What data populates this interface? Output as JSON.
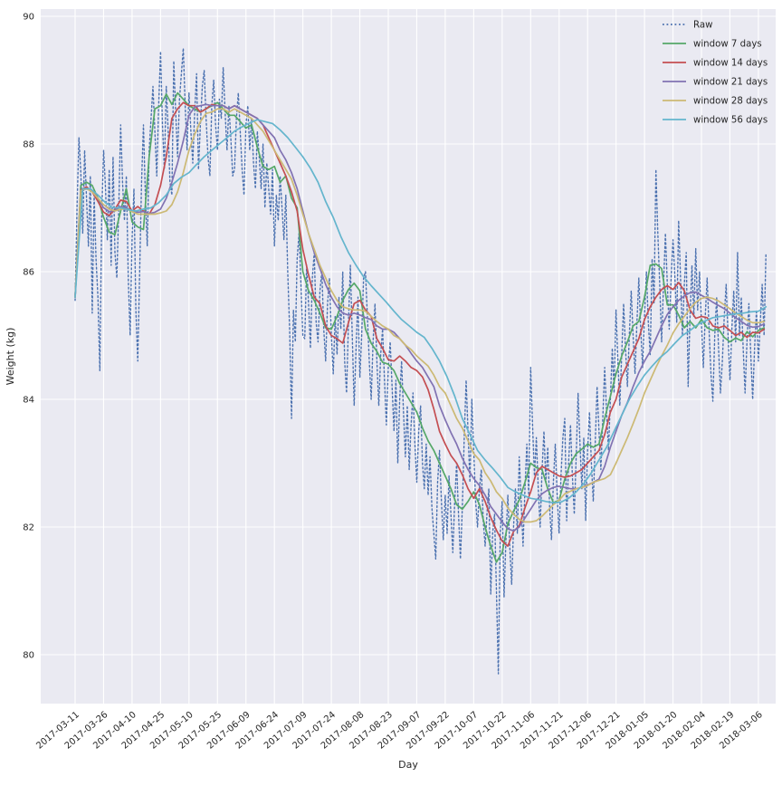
{
  "figure": {
    "bg_color": "#ffffff",
    "axes_bg_color": "#eaeaf2",
    "grid_color": "#ffffff",
    "text_color": "#262626"
  },
  "chart_data": {
    "type": "line",
    "xlabel": "Day",
    "ylabel": "Weight (kg)",
    "grid": true,
    "ylim": [
      79.2,
      90.1
    ],
    "yticks": [
      80,
      82,
      84,
      86,
      88,
      90
    ],
    "x_tick_days": [
      0,
      15,
      30,
      45,
      60,
      75,
      90,
      105,
      120,
      135,
      150,
      165,
      180,
      195,
      210,
      225,
      240,
      255,
      270,
      285,
      300,
      315,
      330,
      345,
      360
    ],
    "x_tick_labels": [
      "2017-03-11",
      "2017-03-26",
      "2017-04-10",
      "2017-04-25",
      "2017-05-10",
      "2017-05-25",
      "2017-06-09",
      "2017-06-24",
      "2017-07-09",
      "2017-07-24",
      "2017-08-08",
      "2017-08-23",
      "2017-09-07",
      "2017-09-22",
      "2017-10-07",
      "2017-10-22",
      "2017-11-06",
      "2017-11-21",
      "2017-12-06",
      "2017-12-21",
      "2018-01-05",
      "2018-01-20",
      "2018-02-04",
      "2018-02-19",
      "2018-03-06"
    ],
    "legend": {
      "position": "upper right",
      "entries": [
        {
          "label": "Raw",
          "color": "#4c72b0",
          "style": "dotted"
        },
        {
          "label": "window 7 days",
          "color": "#55a868",
          "style": "solid"
        },
        {
          "label": "window 14 days",
          "color": "#c44e52",
          "style": "solid"
        },
        {
          "label": "window 21 days",
          "color": "#8172b2",
          "style": "solid"
        },
        {
          "label": "window 28 days",
          "color": "#ccb974",
          "style": "solid"
        },
        {
          "label": "window 56 days",
          "color": "#64b5cd",
          "style": "solid"
        }
      ]
    },
    "series": [
      {
        "name": "Raw",
        "color": "#4c72b0",
        "style": "dotted",
        "width": 1.4,
        "x0": 0,
        "dx": 1,
        "y": [
          85.55,
          87.0,
          88.1,
          87.55,
          86.6,
          87.9,
          87.15,
          86.4,
          87.5,
          85.35,
          87.2,
          86.2,
          85.6,
          84.45,
          86.9,
          87.9,
          87.3,
          86.5,
          87.6,
          86.1,
          87.8,
          86.3,
          85.9,
          87.0,
          88.3,
          87.4,
          86.8,
          87.5,
          85.9,
          85.0,
          86.5,
          87.3,
          85.4,
          84.6,
          86.0,
          87.4,
          88.3,
          87.2,
          86.4,
          87.9,
          88.4,
          88.9,
          88.2,
          87.5,
          88.6,
          89.45,
          88.3,
          87.6,
          88.9,
          88.2,
          87.4,
          87.2,
          89.3,
          88.5,
          87.8,
          88.7,
          89.1,
          89.5,
          88.6,
          87.9,
          88.8,
          88.2,
          87.7,
          88.5,
          89.1,
          87.6,
          88.3,
          88.9,
          89.15,
          88.4,
          87.8,
          87.5,
          88.6,
          89.0,
          88.3,
          87.9,
          88.7,
          88.4,
          89.2,
          88.5,
          87.9,
          88.6,
          88.1,
          87.5,
          87.6,
          88.4,
          88.8,
          88.2,
          87.6,
          87.2,
          88.3,
          88.6,
          87.9,
          88.4,
          87.7,
          87.3,
          88.2,
          87.8,
          87.3,
          88.0,
          87.0,
          87.7,
          87.3,
          86.9,
          87.6,
          86.4,
          87.2,
          86.8,
          87.5,
          87.0,
          86.5,
          87.2,
          86.0,
          85.1,
          83.7,
          85.4,
          84.9,
          86.2,
          86.6,
          85.8,
          85.0,
          84.95,
          86.1,
          85.5,
          84.8,
          85.9,
          86.3,
          85.2,
          84.9,
          85.7,
          86.0,
          85.1,
          84.6,
          85.5,
          85.9,
          85.0,
          84.4,
          85.3,
          84.7,
          85.6,
          85.1,
          86.0,
          84.6,
          84.1,
          85.2,
          86.1,
          85.0,
          83.9,
          84.8,
          85.6,
          84.34,
          85.0,
          85.9,
          86.0,
          85.3,
          84.6,
          84.0,
          84.9,
          85.5,
          84.6,
          83.9,
          84.7,
          85.1,
          84.3,
          83.6,
          84.5,
          84.9,
          84.2,
          83.5,
          84.3,
          83.0,
          84.0,
          84.6,
          83.8,
          83.1,
          83.9,
          82.9,
          83.6,
          84.1,
          83.3,
          82.7,
          83.5,
          83.9,
          83.0,
          82.6,
          83.3,
          82.5,
          83.1,
          82.3,
          81.9,
          81.5,
          82.7,
          83.2,
          82.4,
          81.8,
          82.5,
          81.9,
          82.8,
          82.2,
          81.6,
          82.4,
          83.0,
          82.2,
          81.5,
          82.3,
          83.4,
          84.3,
          83.5,
          82.7,
          84.0,
          83.2,
          82.4,
          82.0,
          82.6,
          82.9,
          82.1,
          81.7,
          82.2,
          82.6,
          80.95,
          81.9,
          82.2,
          81.0,
          79.7,
          81.9,
          82.4,
          80.9,
          81.8,
          82.5,
          81.7,
          81.1,
          82.0,
          82.6,
          81.9,
          83.1,
          82.4,
          81.7,
          82.6,
          83.3,
          82.5,
          84.5,
          83.6,
          82.8,
          83.4,
          82.6,
          82.0,
          82.9,
          83.5,
          82.7,
          83.25,
          82.3,
          81.8,
          82.7,
          83.3,
          82.5,
          81.9,
          82.8,
          83.4,
          83.7,
          82.1,
          83.0,
          83.6,
          82.8,
          82.2,
          83.1,
          84.1,
          83.3,
          82.6,
          83.4,
          82.1,
          83.2,
          83.8,
          83.0,
          82.4,
          83.3,
          84.2,
          83.5,
          82.9,
          83.7,
          84.5,
          83.8,
          83.2,
          84.0,
          84.8,
          84.1,
          85.4,
          84.6,
          83.9,
          84.7,
          85.5,
          84.8,
          84.2,
          85.0,
          85.7,
          85.0,
          84.4,
          85.2,
          85.9,
          85.1,
          84.5,
          85.3,
          86.0,
          85.2,
          84.7,
          86.2,
          85.5,
          87.6,
          86.6,
          85.8,
          84.9,
          85.8,
          86.6,
          85.8,
          85.1,
          85.9,
          86.5,
          85.9,
          85.2,
          86.8,
          85.9,
          85.0,
          85.8,
          86.3,
          84.2,
          85.3,
          86.1,
          85.3,
          86.36,
          85.4,
          86.0,
          85.2,
          84.5,
          85.3,
          85.9,
          85.1,
          84.4,
          83.97,
          85.0,
          85.6,
          84.8,
          84.1,
          84.6,
          85.3,
          85.8,
          85.0,
          84.3,
          85.1,
          85.7,
          84.9,
          86.3,
          85.0,
          85.6,
          84.8,
          84.1,
          84.9,
          85.5,
          84.7,
          84.0,
          84.8,
          85.4,
          84.6,
          85.2,
          85.8,
          85.0,
          86.3
        ]
      },
      {
        "name": "window 7 days",
        "color": "#55a868",
        "style": "solid",
        "width": 1.7,
        "x0": 0,
        "dx": 3,
        "y": [
          85.6,
          87.35,
          87.4,
          87.35,
          87.15,
          86.85,
          86.62,
          86.58,
          86.95,
          87.3,
          86.78,
          86.7,
          86.66,
          87.8,
          88.55,
          88.6,
          88.78,
          88.62,
          88.8,
          88.7,
          88.6,
          88.55,
          88.5,
          88.55,
          88.6,
          88.65,
          88.55,
          88.45,
          88.45,
          88.35,
          88.25,
          88.3,
          87.95,
          87.65,
          87.6,
          87.65,
          87.4,
          87.5,
          87.15,
          87.0,
          86.0,
          85.7,
          85.55,
          85.35,
          85.12,
          85.1,
          85.3,
          85.55,
          85.72,
          85.82,
          85.7,
          85.1,
          84.88,
          84.75,
          84.58,
          84.55,
          84.45,
          84.25,
          84.1,
          83.95,
          83.8,
          83.55,
          83.35,
          83.2,
          83.0,
          82.8,
          82.6,
          82.35,
          82.28,
          82.4,
          82.55,
          82.35,
          82.0,
          81.7,
          81.45,
          81.6,
          82.05,
          82.25,
          82.42,
          82.7,
          83.0,
          82.93,
          82.9,
          82.6,
          82.38,
          82.42,
          82.75,
          83.0,
          83.15,
          83.22,
          83.3,
          83.25,
          83.3,
          83.7,
          84.05,
          84.4,
          84.68,
          84.9,
          85.15,
          85.22,
          85.6,
          86.1,
          86.12,
          86.05,
          85.48,
          85.48,
          85.32,
          85.12,
          85.22,
          85.12,
          85.25,
          85.12,
          85.08,
          85.1,
          84.97,
          84.9,
          84.96,
          84.92,
          85.06,
          84.98,
          85.08,
          85.12
        ]
      },
      {
        "name": "window 14 days",
        "color": "#c44e52",
        "style": "solid",
        "width": 1.7,
        "x0": 0,
        "dx": 3,
        "y": [
          85.6,
          87.28,
          87.33,
          87.25,
          87.1,
          86.93,
          86.88,
          86.98,
          87.12,
          87.1,
          86.95,
          87.02,
          86.95,
          86.9,
          87.05,
          87.35,
          87.8,
          88.4,
          88.55,
          88.65,
          88.6,
          88.6,
          88.5,
          88.55,
          88.62,
          88.6,
          88.6,
          88.55,
          88.6,
          88.55,
          88.5,
          88.45,
          88.4,
          88.3,
          88.1,
          87.9,
          87.7,
          87.5,
          87.25,
          86.95,
          86.35,
          85.95,
          85.6,
          85.5,
          85.15,
          85.0,
          84.95,
          84.88,
          85.2,
          85.5,
          85.55,
          85.4,
          85.3,
          84.95,
          84.8,
          84.62,
          84.6,
          84.68,
          84.6,
          84.5,
          84.45,
          84.35,
          84.15,
          83.85,
          83.5,
          83.3,
          83.12,
          83.0,
          82.82,
          82.6,
          82.45,
          82.6,
          82.4,
          82.15,
          81.95,
          81.78,
          81.7,
          81.93,
          82.02,
          82.3,
          82.55,
          82.85,
          82.95,
          82.9,
          82.85,
          82.8,
          82.78,
          82.8,
          82.85,
          82.9,
          83.0,
          83.1,
          83.2,
          83.45,
          83.8,
          84.0,
          84.35,
          84.55,
          84.75,
          84.95,
          85.25,
          85.45,
          85.6,
          85.72,
          85.78,
          85.72,
          85.83,
          85.7,
          85.4,
          85.27,
          85.3,
          85.28,
          85.15,
          85.12,
          85.15,
          85.08,
          85.0,
          85.05,
          84.97,
          85.05,
          85.04,
          85.1
        ]
      },
      {
        "name": "window 21 days",
        "color": "#8172b2",
        "style": "solid",
        "width": 1.7,
        "x0": 0,
        "dx": 3,
        "y": [
          85.6,
          87.27,
          87.3,
          87.27,
          87.15,
          87.0,
          86.94,
          86.96,
          87.02,
          87.0,
          86.94,
          86.93,
          86.94,
          86.91,
          86.93,
          86.98,
          87.15,
          87.4,
          87.7,
          88.05,
          88.45,
          88.58,
          88.6,
          88.62,
          88.6,
          88.6,
          88.6,
          88.55,
          88.6,
          88.55,
          88.5,
          88.45,
          88.4,
          88.3,
          88.2,
          88.1,
          87.9,
          87.75,
          87.55,
          87.3,
          86.95,
          86.6,
          86.3,
          86.05,
          85.8,
          85.6,
          85.45,
          85.35,
          85.32,
          85.35,
          85.32,
          85.28,
          85.25,
          85.15,
          85.1,
          85.1,
          85.05,
          84.95,
          84.85,
          84.72,
          84.6,
          84.5,
          84.35,
          84.2,
          83.9,
          83.68,
          83.48,
          83.3,
          83.08,
          82.9,
          82.76,
          82.65,
          82.5,
          82.32,
          82.2,
          82.08,
          81.97,
          81.94,
          82.0,
          82.14,
          82.28,
          82.42,
          82.52,
          82.58,
          82.62,
          82.64,
          82.62,
          82.6,
          82.6,
          82.62,
          82.66,
          82.7,
          82.75,
          82.95,
          83.25,
          83.5,
          83.75,
          83.95,
          84.2,
          84.42,
          84.6,
          84.75,
          84.95,
          85.15,
          85.33,
          85.45,
          85.55,
          85.62,
          85.67,
          85.68,
          85.63,
          85.58,
          85.52,
          85.47,
          85.42,
          85.35,
          85.28,
          85.22,
          85.16,
          85.13,
          85.14,
          85.18
        ]
      },
      {
        "name": "window 28 days",
        "color": "#ccb974",
        "style": "solid",
        "width": 1.7,
        "x0": 0,
        "dx": 3,
        "y": [
          85.6,
          87.27,
          87.3,
          87.25,
          87.15,
          87.05,
          86.98,
          86.95,
          86.98,
          86.98,
          86.94,
          86.9,
          86.9,
          86.9,
          86.9,
          86.92,
          86.95,
          87.05,
          87.25,
          87.55,
          87.9,
          88.15,
          88.35,
          88.48,
          88.5,
          88.55,
          88.55,
          88.5,
          88.55,
          88.5,
          88.45,
          88.4,
          88.3,
          88.2,
          88.05,
          87.9,
          87.75,
          87.6,
          87.45,
          87.2,
          86.9,
          86.6,
          86.35,
          86.1,
          85.9,
          85.7,
          85.55,
          85.45,
          85.42,
          85.4,
          85.4,
          85.38,
          85.3,
          85.22,
          85.15,
          85.1,
          85.0,
          84.95,
          84.85,
          84.78,
          84.68,
          84.6,
          84.52,
          84.38,
          84.2,
          84.1,
          83.9,
          83.7,
          83.55,
          83.35,
          83.15,
          83.05,
          82.85,
          82.72,
          82.55,
          82.45,
          82.3,
          82.2,
          82.12,
          82.08,
          82.08,
          82.1,
          82.17,
          82.26,
          82.35,
          82.42,
          82.52,
          82.56,
          82.6,
          82.62,
          82.65,
          82.7,
          82.73,
          82.76,
          82.82,
          83.0,
          83.2,
          83.4,
          83.62,
          83.85,
          84.1,
          84.3,
          84.5,
          84.68,
          84.85,
          85.04,
          85.18,
          85.3,
          85.42,
          85.52,
          85.58,
          85.6,
          85.58,
          85.54,
          85.48,
          85.42,
          85.35,
          85.3,
          85.24,
          85.2,
          85.2,
          85.22
        ]
      },
      {
        "name": "window 56 days",
        "color": "#64b5cd",
        "style": "solid",
        "width": 1.7,
        "x0": 0,
        "dx": 4,
        "y": [
          85.6,
          87.3,
          87.3,
          87.2,
          87.08,
          87.0,
          87.0,
          86.97,
          86.95,
          86.98,
          87.0,
          87.08,
          87.2,
          87.38,
          87.48,
          87.55,
          87.68,
          87.8,
          87.9,
          88.0,
          88.1,
          88.2,
          88.27,
          88.33,
          88.38,
          88.35,
          88.32,
          88.22,
          88.1,
          87.95,
          87.8,
          87.62,
          87.4,
          87.1,
          86.85,
          86.55,
          86.3,
          86.1,
          85.92,
          85.78,
          85.65,
          85.52,
          85.38,
          85.25,
          85.15,
          85.05,
          84.97,
          84.8,
          84.6,
          84.35,
          84.05,
          83.7,
          83.45,
          83.2,
          83.05,
          82.92,
          82.78,
          82.62,
          82.55,
          82.5,
          82.45,
          82.43,
          82.4,
          82.38,
          82.39,
          82.45,
          82.55,
          82.68,
          82.85,
          83.05,
          83.25,
          83.5,
          83.75,
          84.0,
          84.2,
          84.38,
          84.52,
          84.65,
          84.75,
          84.88,
          85.0,
          85.08,
          85.17,
          85.23,
          85.28,
          85.3,
          85.32,
          85.34,
          85.35,
          85.37,
          85.38,
          85.45
        ]
      }
    ]
  }
}
